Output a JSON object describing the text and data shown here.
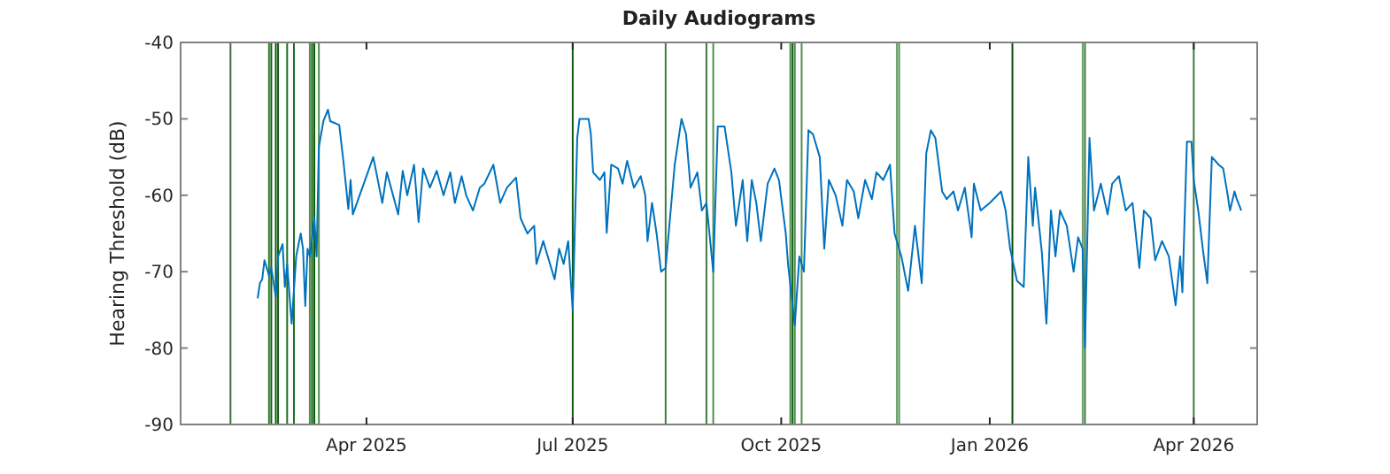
{
  "chart_data": {
    "type": "line",
    "title": "Daily Audiograms",
    "ylabel": "Hearing Threshold (dB)",
    "xlim": [
      "2025-01-09",
      "2026-04-29"
    ],
    "ylim": [
      -90,
      -40
    ],
    "xticks": [
      {
        "value": "2025-04-01",
        "label": "Apr 2025"
      },
      {
        "value": "2025-07-01",
        "label": "Jul 2025"
      },
      {
        "value": "2025-10-01",
        "label": "Oct 2025"
      },
      {
        "value": "2026-01-01",
        "label": "Jan 2026"
      },
      {
        "value": "2026-04-01",
        "label": "Apr 2026"
      }
    ],
    "yticks": [
      -90,
      -80,
      -70,
      -60,
      -50,
      -40
    ],
    "grid": false,
    "marker": "none",
    "line_style": "solid",
    "x": [
      "2025-02-12",
      "2025-02-13",
      "2025-02-14",
      "2025-02-15",
      "2025-02-17",
      "2025-02-18",
      "2025-02-20",
      "2025-02-21",
      "2025-02-23",
      "2025-02-24",
      "2025-02-25",
      "2025-02-27",
      "2025-03-01",
      "2025-03-03",
      "2025-03-04",
      "2025-03-05",
      "2025-03-06",
      "2025-03-07",
      "2025-03-09",
      "2025-03-10",
      "2025-03-11",
      "2025-03-13",
      "2025-03-15",
      "2025-03-16",
      "2025-03-20",
      "2025-03-22",
      "2025-03-24",
      "2025-03-25",
      "2025-03-26",
      "2025-04-04",
      "2025-04-08",
      "2025-04-10",
      "2025-04-15",
      "2025-04-17",
      "2025-04-19",
      "2025-04-22",
      "2025-04-24",
      "2025-04-26",
      "2025-04-29",
      "2025-05-02",
      "2025-05-05",
      "2025-05-08",
      "2025-05-10",
      "2025-05-13",
      "2025-05-15",
      "2025-05-18",
      "2025-05-21",
      "2025-05-23",
      "2025-05-27",
      "2025-05-30",
      "2025-06-02",
      "2025-06-06",
      "2025-06-08",
      "2025-06-11",
      "2025-06-14",
      "2025-06-15",
      "2025-06-18",
      "2025-06-20",
      "2025-06-23",
      "2025-06-25",
      "2025-06-27",
      "2025-06-29",
      "2025-07-01",
      "2025-07-03",
      "2025-07-04",
      "2025-07-08",
      "2025-07-09",
      "2025-07-10",
      "2025-07-13",
      "2025-07-15",
      "2025-07-16",
      "2025-07-18",
      "2025-07-21",
      "2025-07-23",
      "2025-07-25",
      "2025-07-28",
      "2025-07-31",
      "2025-08-02",
      "2025-08-03",
      "2025-08-05",
      "2025-08-07",
      "2025-08-09",
      "2025-08-11",
      "2025-08-15",
      "2025-08-18",
      "2025-08-20",
      "2025-08-22",
      "2025-08-25",
      "2025-08-27",
      "2025-08-29",
      "2025-09-01",
      "2025-09-03",
      "2025-09-06",
      "2025-09-09",
      "2025-09-11",
      "2025-09-14",
      "2025-09-16",
      "2025-09-18",
      "2025-09-20",
      "2025-09-22",
      "2025-09-25",
      "2025-09-28",
      "2025-09-30",
      "2025-10-03",
      "2025-10-04",
      "2025-10-07",
      "2025-10-09",
      "2025-10-11",
      "2025-10-13",
      "2025-10-15",
      "2025-10-18",
      "2025-10-20",
      "2025-10-22",
      "2025-10-25",
      "2025-10-28",
      "2025-10-30",
      "2025-11-02",
      "2025-11-04",
      "2025-11-07",
      "2025-11-10",
      "2025-11-12",
      "2025-11-15",
      "2025-11-18",
      "2025-11-20",
      "2025-11-23",
      "2025-11-26",
      "2025-11-29",
      "2025-12-02",
      "2025-12-04",
      "2025-12-06",
      "2025-12-08",
      "2025-12-11",
      "2025-12-13",
      "2025-12-16",
      "2025-12-18",
      "2025-12-21",
      "2025-12-24",
      "2025-12-25",
      "2025-12-28",
      "2026-01-01",
      "2026-01-06",
      "2026-01-08",
      "2026-01-10",
      "2026-01-13",
      "2026-01-16",
      "2026-01-18",
      "2026-01-20",
      "2026-01-21",
      "2026-01-24",
      "2026-01-26",
      "2026-01-28",
      "2026-01-30",
      "2026-02-01",
      "2026-02-04",
      "2026-02-07",
      "2026-02-09",
      "2026-02-11",
      "2026-02-12",
      "2026-02-14",
      "2026-02-16",
      "2026-02-19",
      "2026-02-22",
      "2026-02-24",
      "2026-02-27",
      "2026-03-02",
      "2026-03-05",
      "2026-03-08",
      "2026-03-10",
      "2026-03-13",
      "2026-03-15",
      "2026-03-18",
      "2026-03-21",
      "2026-03-24",
      "2026-03-26",
      "2026-03-27",
      "2026-03-29",
      "2026-03-31",
      "2026-04-01",
      "2026-04-03",
      "2026-04-05",
      "2026-04-07",
      "2026-04-09",
      "2026-04-12",
      "2026-04-14",
      "2026-04-16",
      "2026-04-17",
      "2026-04-19",
      "2026-04-20",
      "2026-04-22"
    ],
    "series": [
      {
        "color": "#0072bd",
        "values": [
          -73.5,
          -71.5,
          -71,
          -68.5,
          -70.5,
          -69.5,
          -73.3,
          -68,
          -66.4,
          -72,
          -69,
          -76.8,
          -68,
          -65,
          -67,
          -74.5,
          -67,
          -68,
          -63,
          -68,
          -53.7,
          -50.3,
          -48.8,
          -50.3,
          -50.8,
          -56,
          -61.8,
          -58,
          -62.5,
          -55,
          -61,
          -57,
          -62.5,
          -56.8,
          -60,
          -56,
          -63.5,
          -56.5,
          -59,
          -56.8,
          -60,
          -57,
          -61,
          -57.5,
          -60,
          -62,
          -59,
          -58.5,
          -56,
          -61,
          -59,
          -57.7,
          -63,
          -65,
          -64,
          -69,
          -66,
          -68,
          -71,
          -67,
          -69,
          -66,
          -75,
          -52.5,
          -50,
          -50,
          -52,
          -57,
          -58,
          -57,
          -64.9,
          -56,
          -56.5,
          -58.5,
          -55.5,
          -59,
          -57.5,
          -60,
          -66,
          -61,
          -65,
          -70,
          -69.5,
          -56,
          -50,
          -52,
          -59,
          -57,
          -62,
          -61,
          -70,
          -51,
          -51,
          -57,
          -64,
          -58,
          -66,
          -58,
          -61,
          -66,
          -58.5,
          -56.5,
          -58,
          -65,
          -69,
          -77,
          -68,
          -70,
          -51.5,
          -52,
          -55,
          -67,
          -58,
          -60,
          -64,
          -58,
          -59.5,
          -63,
          -58,
          -60.5,
          -57,
          -58,
          -56,
          -65,
          -68,
          -72.5,
          -64,
          -71.5,
          -54.5,
          -51.5,
          -52.5,
          -59.5,
          -60.5,
          -59.5,
          -62,
          -59,
          -65.5,
          -58.5,
          -62,
          -61,
          -59.5,
          -62,
          -67,
          -71.2,
          -72,
          -55,
          -64,
          -59,
          -67.5,
          -76.8,
          -62,
          -68,
          -62,
          -64,
          -70,
          -65.5,
          -67,
          -80,
          -52.5,
          -62,
          -58.5,
          -62.5,
          -58.5,
          -57.5,
          -62,
          -61,
          -69.5,
          -62,
          -63,
          -68.5,
          -66,
          -68,
          -74.4,
          -68,
          -72.7,
          -53,
          -53,
          -58,
          -62,
          -67,
          -71.5,
          -55,
          -56,
          -56.5,
          -60,
          -62,
          -59.5,
          -60.5,
          -62
        ]
      }
    ],
    "ref_lines": [
      {
        "axis": "x",
        "value": "2025-01-31",
        "color": "#3f6f3f"
      },
      {
        "axis": "x",
        "value": "2025-02-17",
        "color": "#2e7d2e"
      },
      {
        "axis": "x",
        "value": "2025-02-18",
        "color": "#0b5d0b"
      },
      {
        "axis": "x",
        "value": "2025-02-20",
        "color": "#0b5d0b"
      },
      {
        "axis": "x",
        "value": "2025-02-21",
        "color": "#0b5d0b"
      },
      {
        "axis": "x",
        "value": "2025-02-25",
        "color": "#1f6f1f"
      },
      {
        "axis": "x",
        "value": "2025-02-28",
        "color": "#1f6f1f"
      },
      {
        "axis": "x",
        "value": "2025-03-07",
        "color": "#4f8f4f"
      },
      {
        "axis": "x",
        "value": "2025-03-08",
        "color": "#0b5d0b"
      },
      {
        "axis": "x",
        "value": "2025-03-09",
        "color": "#0b5d0b"
      },
      {
        "axis": "x",
        "value": "2025-03-11",
        "color": "#4f8f4f"
      },
      {
        "axis": "x",
        "value": "2025-07-01",
        "color": "#0b5d0b"
      },
      {
        "axis": "x",
        "value": "2025-08-11",
        "color": "#3f7a3f"
      },
      {
        "axis": "x",
        "value": "2025-08-29",
        "color": "#3f7a3f"
      },
      {
        "axis": "x",
        "value": "2025-09-01",
        "color": "#4f8f4f"
      },
      {
        "axis": "x",
        "value": "2025-10-05",
        "color": "#4f8f4f"
      },
      {
        "axis": "x",
        "value": "2025-10-06",
        "color": "#0b5d0b"
      },
      {
        "axis": "x",
        "value": "2025-10-07",
        "color": "#4f8f4f"
      },
      {
        "axis": "x",
        "value": "2025-10-10",
        "color": "#4f8f4f"
      },
      {
        "axis": "x",
        "value": "2025-11-21",
        "color": "#6f9f6f"
      },
      {
        "axis": "x",
        "value": "2025-11-22",
        "color": "#4f8f4f"
      },
      {
        "axis": "x",
        "value": "2026-01-11",
        "color": "#0b4d0b"
      },
      {
        "axis": "x",
        "value": "2026-02-11",
        "color": "#6f9f6f"
      },
      {
        "axis": "x",
        "value": "2026-02-12",
        "color": "#3f7a3f"
      },
      {
        "axis": "x",
        "value": "2026-04-01",
        "color": "#3f7a3f"
      }
    ]
  }
}
